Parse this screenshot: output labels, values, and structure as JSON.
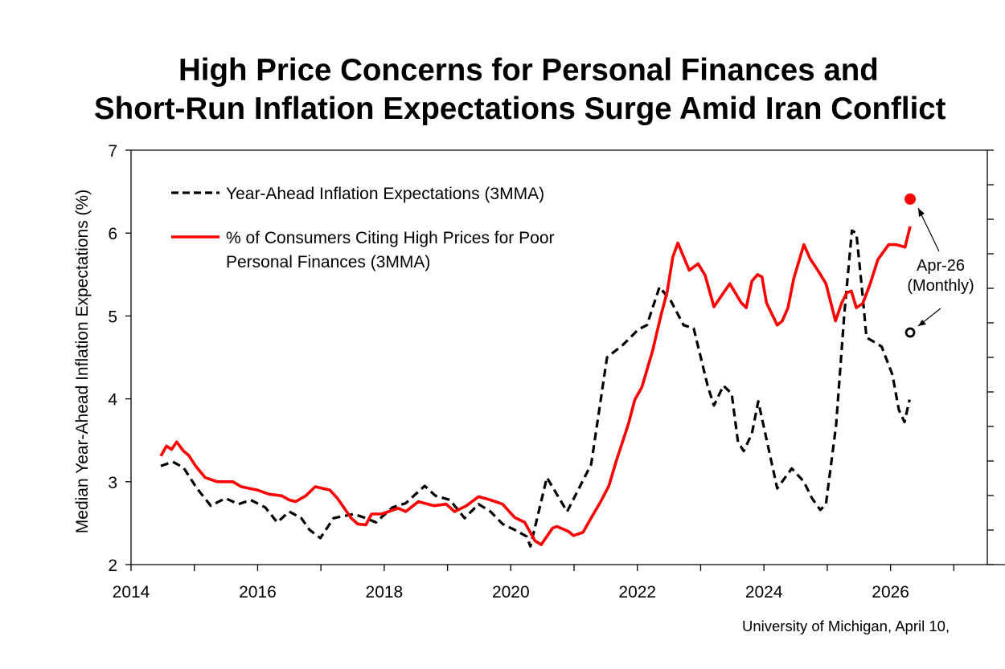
{
  "chart_data": {
    "type": "line",
    "title": [
      "High Price Concerns for Personal Finances and",
      "Short-Run Inflation Expectations Surge Amid Iran Conflict"
    ],
    "ylabel": "Median Year-Ahead Inflation Expectations (%)",
    "xlabel": "",
    "xlim": [
      2014,
      2027.5
    ],
    "ylim": [
      2,
      7
    ],
    "xticks": [
      "2014",
      "2016",
      "2018",
      "2020",
      "2022",
      "2024",
      "2026"
    ],
    "yticks": [
      "2",
      "3",
      "4",
      "5",
      "6",
      "7"
    ],
    "right_axis_note": "right-axis tick labels cropped off image; red series values given in left-axis-equivalent units",
    "legend": {
      "placement": "top-left",
      "entries": [
        {
          "label": "Year-Ahead Inflation Expectations (3MMA)",
          "style": "dashed",
          "color": "#000000"
        },
        {
          "label_lines": [
            "% of Consumers Citing High Prices for Poor",
            "Personal Finances (3MMA)"
          ],
          "style": "solid",
          "color": "#ff0000"
        }
      ]
    },
    "series": [
      {
        "name": "Year-Ahead Inflation Expectations (3MMA)",
        "color": "#000000",
        "dashed": true,
        "points": [
          [
            2014.47,
            3.19
          ],
          [
            2014.66,
            3.24
          ],
          [
            2014.83,
            3.17
          ],
          [
            2015.04,
            2.92
          ],
          [
            2015.26,
            2.71
          ],
          [
            2015.49,
            2.8
          ],
          [
            2015.7,
            2.73
          ],
          [
            2015.89,
            2.78
          ],
          [
            2016.12,
            2.69
          ],
          [
            2016.31,
            2.51
          ],
          [
            2016.5,
            2.64
          ],
          [
            2016.69,
            2.56
          ],
          [
            2016.82,
            2.42
          ],
          [
            2016.99,
            2.32
          ],
          [
            2017.2,
            2.56
          ],
          [
            2017.52,
            2.61
          ],
          [
            2017.71,
            2.56
          ],
          [
            2017.87,
            2.51
          ],
          [
            2018.13,
            2.69
          ],
          [
            2018.34,
            2.74
          ],
          [
            2018.64,
            2.95
          ],
          [
            2018.81,
            2.83
          ],
          [
            2019.04,
            2.78
          ],
          [
            2019.27,
            2.56
          ],
          [
            2019.49,
            2.73
          ],
          [
            2019.68,
            2.64
          ],
          [
            2019.87,
            2.49
          ],
          [
            2020.06,
            2.42
          ],
          [
            2020.25,
            2.34
          ],
          [
            2020.31,
            2.22
          ],
          [
            2020.57,
            3.05
          ],
          [
            2020.89,
            2.64
          ],
          [
            2021.27,
            3.21
          ],
          [
            2021.52,
            4.5
          ],
          [
            2021.77,
            4.65
          ],
          [
            2022.02,
            4.84
          ],
          [
            2022.15,
            4.89
          ],
          [
            2022.35,
            5.35
          ],
          [
            2022.53,
            5.18
          ],
          [
            2022.73,
            4.89
          ],
          [
            2022.89,
            4.85
          ],
          [
            2023.11,
            4.16
          ],
          [
            2023.21,
            3.92
          ],
          [
            2023.36,
            4.16
          ],
          [
            2023.49,
            4.06
          ],
          [
            2023.59,
            3.48
          ],
          [
            2023.68,
            3.37
          ],
          [
            2023.81,
            3.58
          ],
          [
            2023.91,
            3.97
          ],
          [
            2024.21,
            2.92
          ],
          [
            2024.44,
            3.16
          ],
          [
            2024.63,
            3.0
          ],
          [
            2024.76,
            2.8
          ],
          [
            2024.89,
            2.66
          ],
          [
            2024.98,
            2.73
          ],
          [
            2025.14,
            3.68
          ],
          [
            2025.27,
            5.03
          ],
          [
            2025.39,
            6.03
          ],
          [
            2025.46,
            6.0
          ],
          [
            2025.55,
            5.32
          ],
          [
            2025.62,
            4.74
          ],
          [
            2025.78,
            4.67
          ],
          [
            2025.86,
            4.63
          ],
          [
            2026.03,
            4.29
          ],
          [
            2026.13,
            3.87
          ],
          [
            2026.22,
            3.72
          ],
          [
            2026.3,
            3.99
          ]
        ]
      },
      {
        "name": "% of Consumers Citing High Prices for Poor Personal Finances (3MMA)",
        "color": "#ff0000",
        "dashed": false,
        "axis": "right",
        "points": [
          [
            2014.47,
            3.31
          ],
          [
            2014.56,
            3.43
          ],
          [
            2014.64,
            3.39
          ],
          [
            2014.72,
            3.48
          ],
          [
            2014.83,
            3.37
          ],
          [
            2014.91,
            3.32
          ],
          [
            2015.02,
            3.19
          ],
          [
            2015.17,
            3.05
          ],
          [
            2015.36,
            3.0
          ],
          [
            2015.61,
            3.0
          ],
          [
            2015.74,
            2.94
          ],
          [
            2015.99,
            2.9
          ],
          [
            2016.18,
            2.85
          ],
          [
            2016.38,
            2.83
          ],
          [
            2016.5,
            2.78
          ],
          [
            2016.6,
            2.76
          ],
          [
            2016.76,
            2.83
          ],
          [
            2016.91,
            2.94
          ],
          [
            2017.14,
            2.9
          ],
          [
            2017.26,
            2.8
          ],
          [
            2017.48,
            2.56
          ],
          [
            2017.58,
            2.49
          ],
          [
            2017.71,
            2.48
          ],
          [
            2017.8,
            2.61
          ],
          [
            2017.96,
            2.61
          ],
          [
            2018.22,
            2.68
          ],
          [
            2018.34,
            2.64
          ],
          [
            2018.54,
            2.76
          ],
          [
            2018.79,
            2.71
          ],
          [
            2018.98,
            2.73
          ],
          [
            2019.11,
            2.64
          ],
          [
            2019.3,
            2.71
          ],
          [
            2019.49,
            2.82
          ],
          [
            2019.68,
            2.78
          ],
          [
            2019.87,
            2.73
          ],
          [
            2020.06,
            2.57
          ],
          [
            2020.22,
            2.51
          ],
          [
            2020.38,
            2.29
          ],
          [
            2020.48,
            2.24
          ],
          [
            2020.66,
            2.44
          ],
          [
            2020.73,
            2.46
          ],
          [
            2020.91,
            2.4
          ],
          [
            2020.99,
            2.35
          ],
          [
            2021.14,
            2.39
          ],
          [
            2021.29,
            2.59
          ],
          [
            2021.42,
            2.76
          ],
          [
            2021.55,
            2.95
          ],
          [
            2021.67,
            3.26
          ],
          [
            2021.86,
            3.7
          ],
          [
            2021.96,
            3.99
          ],
          [
            2022.07,
            4.14
          ],
          [
            2022.24,
            4.58
          ],
          [
            2022.32,
            4.84
          ],
          [
            2022.38,
            5.03
          ],
          [
            2022.47,
            5.29
          ],
          [
            2022.56,
            5.71
          ],
          [
            2022.64,
            5.88
          ],
          [
            2022.82,
            5.55
          ],
          [
            2022.96,
            5.63
          ],
          [
            2023.07,
            5.49
          ],
          [
            2023.21,
            5.11
          ],
          [
            2023.46,
            5.39
          ],
          [
            2023.64,
            5.16
          ],
          [
            2023.72,
            5.1
          ],
          [
            2023.81,
            5.42
          ],
          [
            2023.9,
            5.5
          ],
          [
            2023.97,
            5.47
          ],
          [
            2024.04,
            5.16
          ],
          [
            2024.21,
            4.89
          ],
          [
            2024.29,
            4.94
          ],
          [
            2024.38,
            5.1
          ],
          [
            2024.47,
            5.45
          ],
          [
            2024.63,
            5.86
          ],
          [
            2024.73,
            5.69
          ],
          [
            2024.86,
            5.54
          ],
          [
            2024.98,
            5.39
          ],
          [
            2025.13,
            4.94
          ],
          [
            2025.23,
            5.16
          ],
          [
            2025.31,
            5.28
          ],
          [
            2025.38,
            5.3
          ],
          [
            2025.46,
            5.1
          ],
          [
            2025.56,
            5.15
          ],
          [
            2025.67,
            5.37
          ],
          [
            2025.8,
            5.68
          ],
          [
            2025.97,
            5.86
          ],
          [
            2026.09,
            5.86
          ],
          [
            2026.23,
            5.83
          ],
          [
            2026.31,
            6.08
          ]
        ]
      }
    ],
    "monthly_points": [
      {
        "name": "Apr-26 high prices (monthly)",
        "x": 2026.31,
        "y": 6.41,
        "color": "#ff0000",
        "filled": true
      },
      {
        "name": "Apr-26 inflation expectations (monthly)",
        "x": 2026.31,
        "y": 4.8,
        "color": "#000000",
        "filled": false
      }
    ],
    "annotation": [
      "Apr-26",
      "(Monthly)"
    ],
    "source": "University of Michigan, April 10,"
  }
}
